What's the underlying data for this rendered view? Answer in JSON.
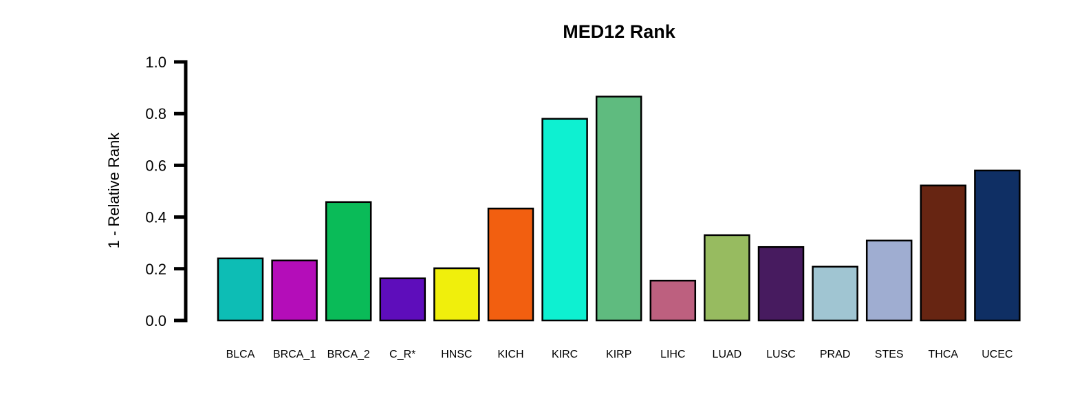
{
  "chart_data": {
    "type": "bar",
    "title": "MED12 Rank",
    "xlabel": "",
    "ylabel": "1 - Relative Rank",
    "ylim": [
      0,
      1
    ],
    "yticks": [
      "0.0",
      "0.2",
      "0.4",
      "0.6",
      "0.8",
      "1.0"
    ],
    "grid": false,
    "categories": [
      "BLCA",
      "BRCA_1",
      "BRCA_2",
      "C_R*",
      "HNSC",
      "KICH",
      "KIRC",
      "KIRP",
      "LIHC",
      "LUAD",
      "LUSC",
      "PRAD",
      "STES",
      "THCA",
      "UCEC"
    ],
    "values": [
      0.24,
      0.232,
      0.458,
      0.163,
      0.202,
      0.433,
      0.78,
      0.866,
      0.154,
      0.33,
      0.284,
      0.208,
      0.309,
      0.522,
      0.58
    ],
    "colors": [
      "#0DBDB5",
      "#B40DB9",
      "#0ABB58",
      "#5E0DBB",
      "#F0EF0C",
      "#F25F10",
      "#0EF0D1",
      "#5FBB7F",
      "#BD607F",
      "#97BB60",
      "#471B5F",
      "#A0C5D2",
      "#9FADD1",
      "#672512",
      "#0F2F64"
    ]
  }
}
